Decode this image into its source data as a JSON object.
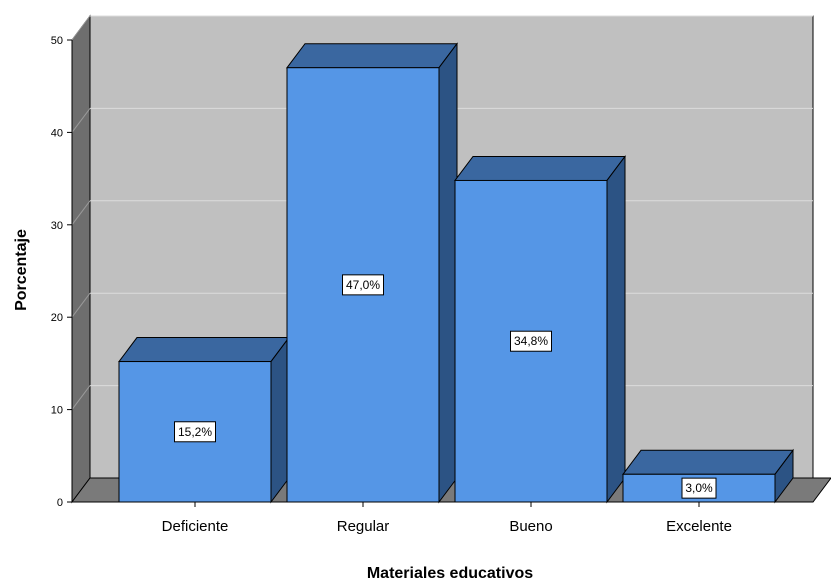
{
  "chart_data": {
    "type": "bar",
    "style": "3d",
    "categories": [
      "Deficiente",
      "Regular",
      "Bueno",
      "Excelente"
    ],
    "values": [
      15.2,
      47.0,
      34.8,
      3.0
    ],
    "data_labels": [
      "15,2%",
      "47,0%",
      "34,8%",
      "3,0%"
    ],
    "xlabel": "Materiales educativos",
    "ylabel": "Porcentaje",
    "yticks": [
      "0",
      "10",
      "20",
      "30",
      "40",
      "50"
    ],
    "ylim": [
      0,
      50
    ],
    "grid": true,
    "colors": {
      "bar_front": "#5596e6",
      "bar_top": "#3a67a0",
      "bar_side": "#2c5384",
      "back_wall": "#c0c0c0",
      "left_wall": "#6e6e6e",
      "floor": "#7a7a7a",
      "grid": "#dcdcdc"
    }
  }
}
